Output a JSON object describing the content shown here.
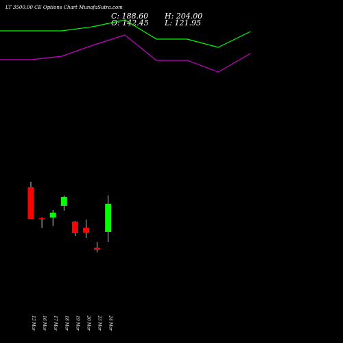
{
  "chart_data": {
    "type": "candlestick",
    "title": "LT 3500.00  CE Options  Chart MunafaSutra.com",
    "summary": {
      "close": "C: 188.60",
      "open": "O: 142.45",
      "high": "H: 204.00",
      "low": "L: 121.95"
    },
    "categories": [
      "13 Mar",
      "16 Mar",
      "17 Mar",
      "18 Mar",
      "19 Mar",
      "20 Mar",
      "23 Mar",
      "24 Mar"
    ],
    "candles": [
      {
        "date": "13 Mar",
        "open": 182,
        "high": 190,
        "low": 136,
        "close": 136
      },
      {
        "date": "16 Mar",
        "open": 137,
        "high": 138,
        "low": 123,
        "close": 136
      },
      {
        "date": "17 Mar",
        "open": 138,
        "high": 149,
        "low": 126,
        "close": 145
      },
      {
        "date": "18 Mar",
        "open": 155,
        "high": 170,
        "low": 148,
        "close": 168
      },
      {
        "date": "19 Mar",
        "open": 132,
        "high": 133,
        "low": 111,
        "close": 115
      },
      {
        "date": "20 Mar",
        "open": 123,
        "high": 135,
        "low": 108,
        "close": 116
      },
      {
        "date": "23 Mar",
        "open": 94,
        "high": 102,
        "low": 87,
        "close": 91
      },
      {
        "date": "24 Mar",
        "open": 117,
        "high": 170,
        "low": 102,
        "close": 158
      }
    ],
    "upper_band": [
      410,
      410,
      410,
      416,
      426,
      398,
      398,
      386,
      409
    ],
    "lower_band": [
      368,
      368,
      373,
      389,
      404,
      367,
      367,
      350,
      377
    ],
    "colors": {
      "up": "#00ff00",
      "down": "#ff0000",
      "upper_band": "#00ff00",
      "lower_band": "#cc00cc",
      "background": "#000000",
      "text": "#ffffff"
    }
  }
}
